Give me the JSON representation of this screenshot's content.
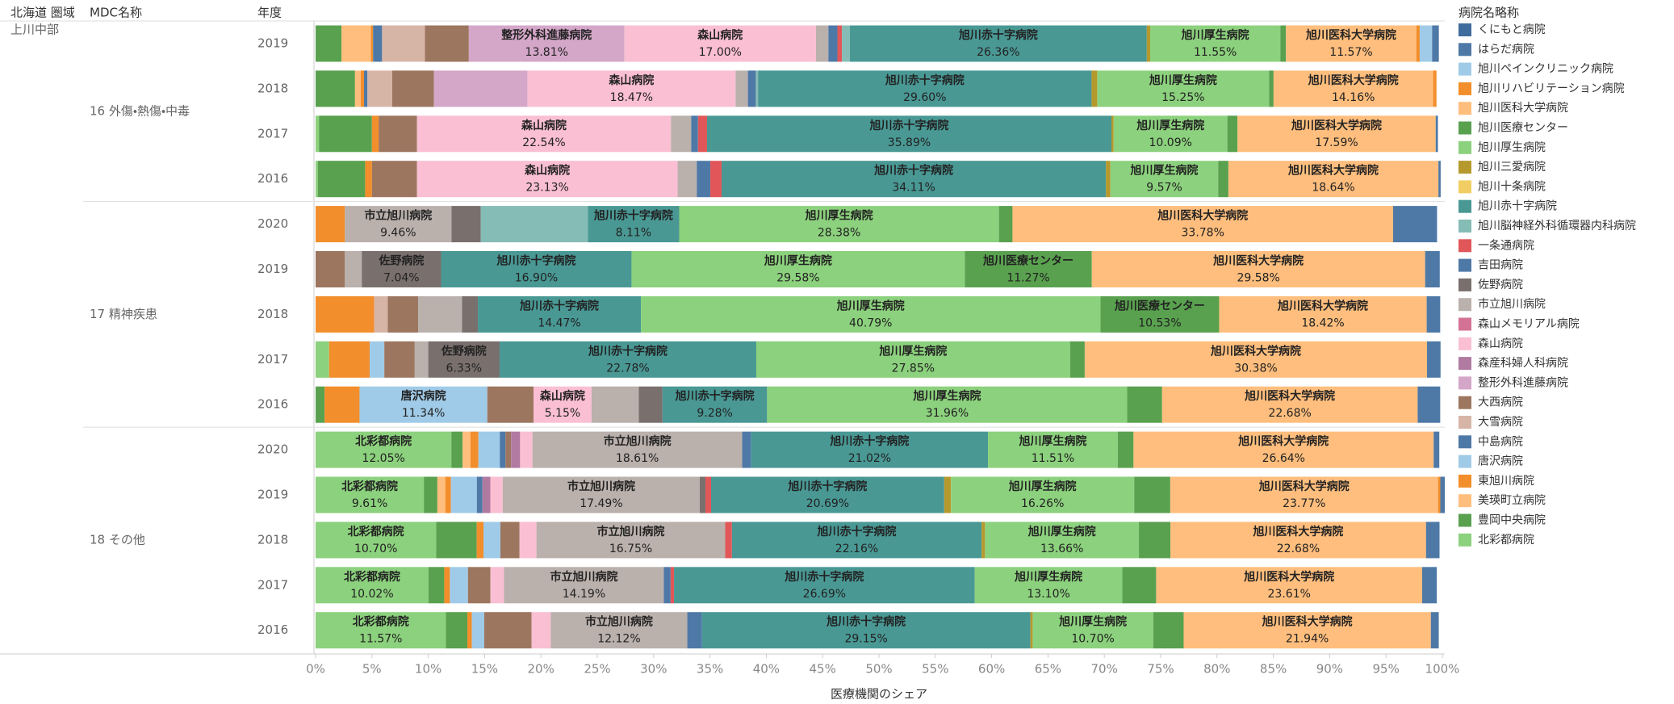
{
  "chart_data": {
    "type": "stacked_bar_horizontal",
    "headers": {
      "region": "北海道 圏域",
      "mdc": "MDC名称",
      "year": "年度",
      "legend": "病院名略称"
    },
    "region": "上川中部",
    "x_label": "医療機関のシェア",
    "groups": [
      {
        "label": "16 外傷・熱傷・中毒",
        "categories": [
          "2019",
          "2018",
          "2017",
          "2016"
        ]
      },
      {
        "label": "17 精神疾患",
        "categories": [
          "2020",
          "2019",
          "2018",
          "2017",
          "2016"
        ]
      },
      {
        "label": "18 その他",
        "categories": [
          "2020",
          "2019",
          "2018",
          "2017",
          "2016"
        ]
      }
    ],
    "xlim": [
      0,
      100
    ],
    "xticks": [
      {
        "value": 0,
        "label": "0%"
      },
      {
        "value": 5,
        "label": "5%"
      },
      {
        "value": 10,
        "label": "10%"
      },
      {
        "value": 15,
        "label": "15%"
      },
      {
        "value": 20,
        "label": "20%"
      },
      {
        "value": 25,
        "label": "25%"
      },
      {
        "value": 30,
        "label": "30%"
      },
      {
        "value": 35,
        "label": "35%"
      },
      {
        "value": 40,
        "label": "40%"
      },
      {
        "value": 45,
        "label": "45%"
      },
      {
        "value": 50,
        "label": "50%"
      },
      {
        "value": 55,
        "label": "55%"
      },
      {
        "value": 60,
        "label": "60%"
      },
      {
        "value": 65,
        "label": "65%"
      },
      {
        "value": 70,
        "label": "70%"
      },
      {
        "value": 75,
        "label": "75%"
      },
      {
        "value": 80,
        "label": "80%"
      },
      {
        "value": 85,
        "label": "85%"
      },
      {
        "value": 90,
        "label": "90%"
      },
      {
        "value": 95,
        "label": "95%"
      },
      {
        "value": 100,
        "label": "100%"
      }
    ],
    "stack_order": "reverse_legend",
    "series": [
      {
        "name": "くにもと病院",
        "color": "#3f6d9e",
        "values": [
          null,
          null,
          null,
          null,
          null,
          null,
          null,
          null,
          null,
          null,
          null,
          null,
          null,
          null
        ]
      },
      {
        "name": "はらだ病院",
        "color": "#4e79a7",
        "values": [
          0.6,
          null,
          0.2,
          0.2,
          3.9,
          1.3,
          1.2,
          1.2,
          2.0,
          0.5,
          0.4,
          1.2,
          1.3,
          0.7
        ]
      },
      {
        "name": "旭川ペインクリニック病院",
        "color": "#a0cbe8",
        "values": [
          1.1,
          null,
          null,
          null,
          null,
          null,
          null,
          null,
          null,
          null,
          null,
          null,
          null,
          null
        ]
      },
      {
        "name": "旭川リハビリテーション病院",
        "color": "#f28e2b",
        "values": [
          0.3,
          0.3,
          null,
          null,
          null,
          null,
          null,
          null,
          null,
          null,
          0.2,
          null,
          null,
          null
        ]
      },
      {
        "name": "旭川医科大学病院",
        "color": "#ffbe7d",
        "values": [
          11.57,
          14.16,
          17.59,
          18.64,
          33.78,
          29.58,
          18.42,
          30.38,
          22.68,
          26.64,
          23.77,
          22.68,
          23.61,
          21.94
        ],
        "value_labels": [
          "11.57%",
          "14.16%",
          "17.59%",
          "18.64%",
          "33.78%",
          "29.58%",
          "18.42%",
          "30.38%",
          "22.68%",
          "26.64%",
          "23.77%",
          "22.68%",
          "23.61%",
          "21.94%"
        ]
      },
      {
        "name": "旭川医療センター",
        "color": "#59a14f",
        "values": [
          0.5,
          0.4,
          0.9,
          0.9,
          1.2,
          11.27,
          10.53,
          1.3,
          3.1,
          1.4,
          3.2,
          2.8,
          3.0,
          2.7
        ],
        "value_labels": [
          null,
          null,
          null,
          null,
          null,
          "11.27%",
          "10.53%",
          null,
          null,
          null,
          null,
          null,
          null,
          null
        ]
      },
      {
        "name": "旭川厚生病院",
        "color": "#8cd17d",
        "values": [
          11.55,
          15.25,
          10.09,
          9.57,
          28.38,
          29.58,
          40.79,
          27.85,
          31.96,
          11.51,
          16.26,
          13.66,
          13.1,
          10.7
        ],
        "value_labels": [
          "11.55%",
          "15.25%",
          "10.09%",
          "9.57%",
          "28.38%",
          "29.58%",
          "40.79%",
          "27.85%",
          "31.96%",
          "11.51%",
          "16.26%",
          "13.66%",
          "13.10%",
          "10.70%"
        ]
      },
      {
        "name": "旭川三愛病院",
        "color": "#b6992d",
        "values": [
          0.3,
          0.5,
          0.2,
          0.4,
          null,
          null,
          null,
          null,
          null,
          null,
          0.6,
          0.3,
          null,
          0.2
        ]
      },
      {
        "name": "旭川十条病院",
        "color": "#f1ce63",
        "values": [
          null,
          null,
          null,
          null,
          null,
          null,
          null,
          null,
          null,
          null,
          null,
          null,
          null,
          null
        ]
      },
      {
        "name": "旭川赤十字病院",
        "color": "#499894",
        "values": [
          26.36,
          29.6,
          35.89,
          34.11,
          8.11,
          16.9,
          14.47,
          22.78,
          9.28,
          21.02,
          20.69,
          22.16,
          26.69,
          29.15
        ],
        "value_labels": [
          "26.36%",
          "29.60%",
          "35.89%",
          "34.11%",
          "8.11%",
          "16.90%",
          "14.47%",
          "22.78%",
          "9.28%",
          "21.02%",
          "20.69%",
          "22.16%",
          "26.69%",
          "29.15%"
        ]
      },
      {
        "name": "旭川脳神経外科循環器内科病院",
        "color": "#86bcb6",
        "values": [
          0.7,
          0.2,
          null,
          null,
          9.5,
          null,
          null,
          null,
          null,
          null,
          null,
          null,
          null,
          null
        ]
      },
      {
        "name": "一条通病院",
        "color": "#e15759",
        "values": [
          0.4,
          null,
          0.8,
          1.0,
          null,
          null,
          null,
          null,
          null,
          null,
          0.5,
          0.6,
          0.3,
          null
        ]
      },
      {
        "name": "吉田病院",
        "color": "#4e79a7",
        "values": [
          0.8,
          0.7,
          0.6,
          1.2,
          null,
          null,
          null,
          null,
          null,
          0.8,
          null,
          null,
          0.6,
          1.3
        ]
      },
      {
        "name": "佐野病院",
        "color": "#79706e",
        "values": [
          null,
          null,
          null,
          null,
          2.6,
          7.04,
          1.4,
          6.33,
          2.1,
          null,
          0.5,
          null,
          null,
          null
        ],
        "value_labels": [
          null,
          null,
          null,
          null,
          null,
          "7.04%",
          null,
          "6.33%",
          null,
          null,
          null,
          null,
          null,
          null
        ]
      },
      {
        "name": "市立旭川病院",
        "color": "#bab0ac",
        "values": [
          1.1,
          1.1,
          1.8,
          1.7,
          9.46,
          1.5,
          3.9,
          1.2,
          4.2,
          18.61,
          17.49,
          16.75,
          14.19,
          12.12
        ],
        "value_labels": [
          null,
          null,
          null,
          null,
          "9.46%",
          null,
          null,
          null,
          null,
          "18.61%",
          "17.49%",
          "16.75%",
          "14.19%",
          "12.12%"
        ]
      },
      {
        "name": "森山メモリアル病院",
        "color": "#d37295",
        "values": [
          null,
          null,
          null,
          null,
          null,
          null,
          null,
          null,
          null,
          null,
          null,
          null,
          null,
          null
        ]
      },
      {
        "name": "森山病院",
        "color": "#fabfd2",
        "values": [
          17.0,
          18.47,
          22.54,
          23.13,
          null,
          null,
          null,
          null,
          5.15,
          1.1,
          1.1,
          1.5,
          1.2,
          1.7
        ],
        "value_labels": [
          "17.00%",
          "18.47%",
          "22.54%",
          "23.13%",
          null,
          null,
          null,
          null,
          "5.15%",
          null,
          null,
          null,
          null,
          null
        ]
      },
      {
        "name": "森産科婦人科病院",
        "color": "#b07aa1",
        "values": [
          null,
          null,
          null,
          null,
          null,
          null,
          null,
          null,
          null,
          0.8,
          0.7,
          null,
          null,
          null
        ]
      },
      {
        "name": "整形外科進藤病院",
        "color": "#d4a6c8",
        "values": [
          13.81,
          8.3,
          null,
          null,
          null,
          null,
          null,
          null,
          null,
          null,
          null,
          null,
          null,
          null
        ],
        "value_labels": [
          "13.81%",
          null,
          null,
          null,
          null,
          null,
          null,
          null,
          null,
          null,
          null,
          null,
          null,
          null
        ]
      },
      {
        "name": "大西病院",
        "color": "#9d7660",
        "values": [
          3.9,
          3.7,
          3.4,
          4.0,
          null,
          2.6,
          2.7,
          2.7,
          4.1,
          0.5,
          null,
          1.7,
          2.0,
          4.2
        ]
      },
      {
        "name": "大雪病院",
        "color": "#d7b5a6",
        "values": [
          3.8,
          2.2,
          null,
          null,
          null,
          null,
          1.2,
          null,
          null,
          null,
          null,
          null,
          null,
          null
        ]
      },
      {
        "name": "中島病院",
        "color": "#4e79a7",
        "values": [
          0.8,
          0.3,
          null,
          null,
          null,
          null,
          null,
          null,
          null,
          0.5,
          0.5,
          null,
          null,
          null
        ]
      },
      {
        "name": "唐沢病院",
        "color": "#a0cbe8",
        "values": [
          null,
          null,
          null,
          null,
          null,
          null,
          null,
          1.3,
          11.34,
          1.9,
          2.3,
          1.5,
          1.6,
          1.1
        ],
        "value_labels": [
          null,
          null,
          null,
          null,
          null,
          null,
          null,
          null,
          "11.34%",
          null,
          null,
          null,
          null,
          null
        ]
      },
      {
        "name": "東旭川病院",
        "color": "#f28e2b",
        "values": [
          0.2,
          0.3,
          0.6,
          0.6,
          2.6,
          null,
          5.2,
          3.6,
          3.1,
          0.7,
          0.5,
          0.6,
          0.5,
          0.4
        ]
      },
      {
        "name": "美瑛町立病院",
        "color": "#ffbe7d",
        "values": [
          2.6,
          0.5,
          null,
          null,
          null,
          null,
          null,
          null,
          null,
          0.7,
          0.7,
          null,
          null,
          null
        ]
      },
      {
        "name": "豊岡中央病院",
        "color": "#59a14f",
        "values": [
          2.3,
          3.5,
          4.7,
          4.2,
          null,
          null,
          null,
          null,
          0.8,
          1.0,
          1.2,
          3.6,
          1.4,
          1.9
        ]
      },
      {
        "name": "北彩都病院",
        "color": "#8cd17d",
        "values": [
          null,
          null,
          0.3,
          0.2,
          null,
          null,
          null,
          1.2,
          null,
          12.05,
          9.61,
          10.7,
          10.02,
          11.57
        ],
        "value_labels": [
          null,
          null,
          null,
          null,
          null,
          null,
          null,
          null,
          null,
          "12.05%",
          "9.61%",
          "10.70%",
          "10.02%",
          "11.57%"
        ]
      }
    ]
  }
}
